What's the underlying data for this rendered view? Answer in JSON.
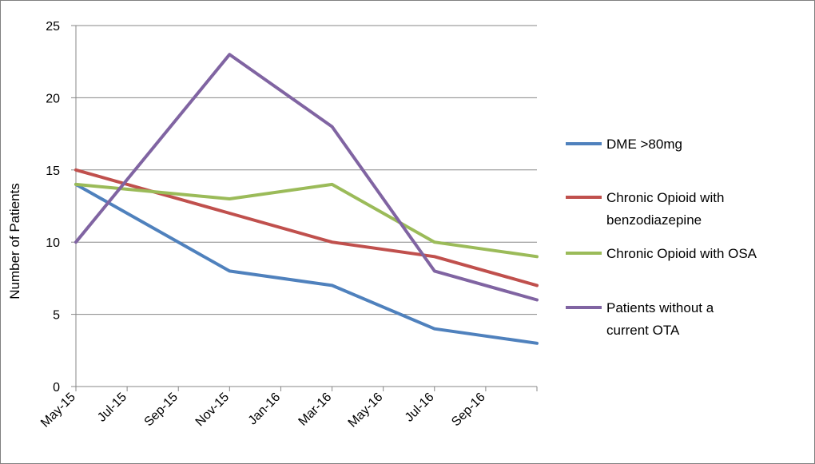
{
  "chart_data": {
    "type": "line",
    "title": "",
    "xlabel": "",
    "ylabel": "Number of Patients",
    "ylim": [
      0,
      25
    ],
    "yticks": [
      "0",
      "5",
      "10",
      "15",
      "20",
      "25"
    ],
    "x_tick_labels": [
      "May-15",
      "Jul-15",
      "Sep-15",
      "Nov-15",
      "Jan-16",
      "Mar-16",
      "May-16",
      "Jul-16",
      "Sep-16"
    ],
    "x": [
      "2015-05",
      "2015-11",
      "2016-03",
      "2016-07",
      "2016-11"
    ],
    "grid": "horizontal",
    "legend_position": "right",
    "series": [
      {
        "name": "DME >80mg",
        "color": "#4f81bd",
        "values": [
          14,
          8,
          7,
          4,
          3
        ]
      },
      {
        "name": "Chronic Opioid with benzodiazepine",
        "color": "#c0504d",
        "values": [
          15,
          12,
          10,
          9,
          7
        ]
      },
      {
        "name": "Chronic Opioid with OSA",
        "color": "#9bbb59",
        "values": [
          14,
          13,
          14,
          10,
          9
        ]
      },
      {
        "name": "Patients without a current OTA",
        "color": "#8064a2",
        "values": [
          10,
          23,
          18,
          8,
          6
        ]
      }
    ]
  }
}
